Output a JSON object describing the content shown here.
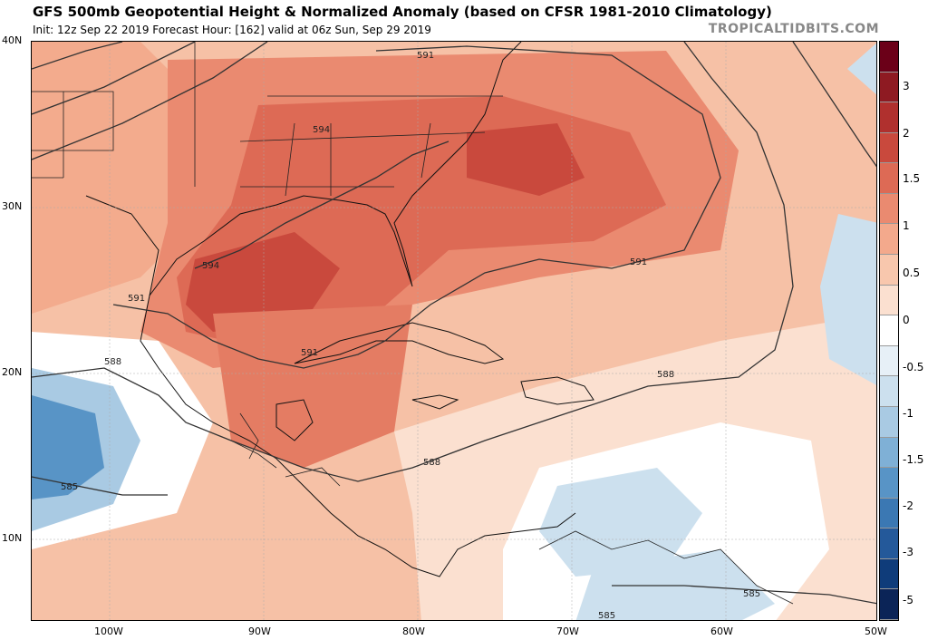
{
  "header": {
    "title": "GFS 500mb Geopotential Height & Normalized Anomaly (based on CFSR 1981-2010 Climatology)",
    "subtitle": "Init: 12z Sep 22 2019   Forecast Hour: [162]   valid at 06z Sun, Sep 29 2019",
    "brand": "TROPICALTIDBITS.COM"
  },
  "axes": {
    "lat_labels": [
      "40N",
      "30N",
      "20N",
      "10N"
    ],
    "lon_labels": [
      "100W",
      "90W",
      "80W",
      "70W",
      "60W",
      "50W"
    ]
  },
  "contours": {
    "labels": [
      "591",
      "594",
      "594",
      "591",
      "591",
      "591",
      "588",
      "588",
      "588",
      "585",
      "585",
      "585"
    ]
  },
  "colorbar": {
    "labels": [
      "3",
      "2",
      "1.5",
      "1",
      "0.5",
      "0",
      "-0.5",
      "-1",
      "-1.5",
      "-2",
      "-3",
      "-5"
    ],
    "colors": [
      "#6b0018",
      "#8e1a22",
      "#b0302e",
      "#c9493d",
      "#dd6a55",
      "#ea8a70",
      "#f3a98c",
      "#f8c7ad",
      "#fbe0d0",
      "#ffffff",
      "#e7f0f7",
      "#cce0ee",
      "#a9cae3",
      "#7fb0d6",
      "#5894c6",
      "#3b78b3",
      "#24599a",
      "#0f3c7a",
      "#0b2457"
    ]
  }
}
